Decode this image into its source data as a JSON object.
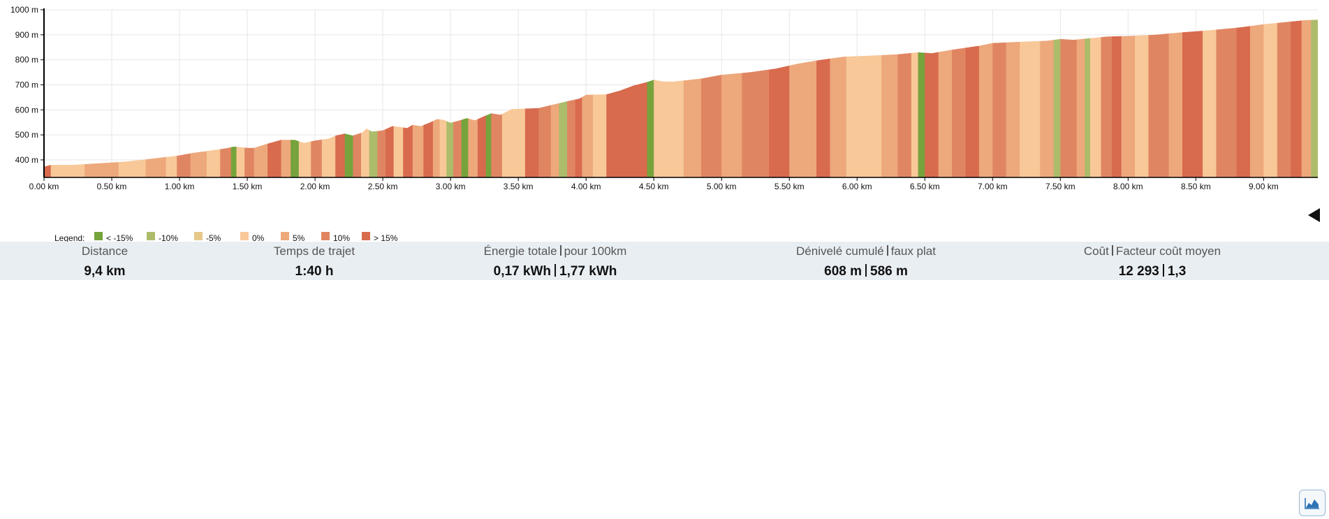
{
  "chart_data": {
    "type": "area",
    "xlabel": "",
    "ylabel": "",
    "xlim": [
      0,
      9.4
    ],
    "ylim": [
      330,
      1000
    ],
    "x_ticks": [
      0,
      0.5,
      1.0,
      1.5,
      2.0,
      2.5,
      3.0,
      3.5,
      4.0,
      4.5,
      5.0,
      5.5,
      6.0,
      6.5,
      7.0,
      7.5,
      8.0,
      8.5,
      9.0
    ],
    "x_tick_labels": [
      "0.00 km",
      "0.50 km",
      "1.00 km",
      "1.50 km",
      "2.00 km",
      "2.50 km",
      "3.00 km",
      "3.50 km",
      "4.00 km",
      "4.50 km",
      "5.00 km",
      "5.50 km",
      "6.00 km",
      "6.50 km",
      "7.00 km",
      "7.50 km",
      "8.00 km",
      "8.50 km",
      "9.00 km"
    ],
    "y_ticks": [
      400,
      500,
      600,
      700,
      800,
      900,
      1000
    ],
    "y_tick_labels": [
      "400 m",
      "500 m",
      "600 m",
      "700 m",
      "800 m",
      "900 m",
      "1000 m"
    ],
    "grid": true,
    "gradient_classes": [
      {
        "label": "< -15%",
        "color": "#76a33b"
      },
      {
        "label": "-10%",
        "color": "#acbc6a"
      },
      {
        "label": "-5%",
        "color": "#e6c98a"
      },
      {
        "label": "0%",
        "color": "#f8c898"
      },
      {
        "label": "5%",
        "color": "#eda87c"
      },
      {
        "label": "10%",
        "color": "#e08562"
      },
      {
        "label": "> 15%",
        "color": "#d86a4e"
      }
    ],
    "elevation_profile": [
      [
        0.0,
        373
      ],
      [
        0.05,
        380
      ],
      [
        0.2,
        380
      ],
      [
        0.4,
        386
      ],
      [
        0.6,
        393
      ],
      [
        0.8,
        405
      ],
      [
        1.0,
        418
      ],
      [
        1.1,
        428
      ],
      [
        1.2,
        435
      ],
      [
        1.35,
        447
      ],
      [
        1.4,
        453
      ],
      [
        1.5,
        448
      ],
      [
        1.55,
        448
      ],
      [
        1.65,
        465
      ],
      [
        1.75,
        480
      ],
      [
        1.85,
        480
      ],
      [
        1.92,
        468
      ],
      [
        2.0,
        477
      ],
      [
        2.1,
        485
      ],
      [
        2.15,
        497
      ],
      [
        2.22,
        505
      ],
      [
        2.28,
        497
      ],
      [
        2.35,
        510
      ],
      [
        2.38,
        525
      ],
      [
        2.42,
        513
      ],
      [
        2.5,
        518
      ],
      [
        2.57,
        535
      ],
      [
        2.62,
        532
      ],
      [
        2.68,
        527
      ],
      [
        2.72,
        540
      ],
      [
        2.78,
        535
      ],
      [
        2.85,
        550
      ],
      [
        2.9,
        563
      ],
      [
        2.95,
        560
      ],
      [
        3.0,
        548
      ],
      [
        3.06,
        557
      ],
      [
        3.12,
        567
      ],
      [
        3.18,
        558
      ],
      [
        3.25,
        575
      ],
      [
        3.3,
        586
      ],
      [
        3.37,
        580
      ],
      [
        3.45,
        603
      ],
      [
        3.55,
        605
      ],
      [
        3.65,
        607
      ],
      [
        3.75,
        620
      ],
      [
        3.85,
        633
      ],
      [
        3.95,
        645
      ],
      [
        4.0,
        660
      ],
      [
        4.15,
        662
      ],
      [
        4.25,
        677
      ],
      [
        4.35,
        697
      ],
      [
        4.45,
        711
      ],
      [
        4.5,
        720
      ],
      [
        4.57,
        713
      ],
      [
        4.65,
        713
      ],
      [
        4.85,
        725
      ],
      [
        5.0,
        740
      ],
      [
        5.2,
        750
      ],
      [
        5.4,
        765
      ],
      [
        5.55,
        783
      ],
      [
        5.7,
        797
      ],
      [
        5.8,
        805
      ],
      [
        5.9,
        812
      ],
      [
        6.1,
        817
      ],
      [
        6.3,
        822
      ],
      [
        6.45,
        830
      ],
      [
        6.55,
        826
      ],
      [
        6.7,
        840
      ],
      [
        6.9,
        856
      ],
      [
        7.0,
        867
      ],
      [
        7.2,
        872
      ],
      [
        7.4,
        876
      ],
      [
        7.5,
        883
      ],
      [
        7.6,
        880
      ],
      [
        7.75,
        888
      ],
      [
        7.85,
        893
      ],
      [
        8.0,
        895
      ],
      [
        8.2,
        900
      ],
      [
        8.4,
        910
      ],
      [
        8.6,
        918
      ],
      [
        8.8,
        928
      ],
      [
        9.0,
        942
      ],
      [
        9.15,
        950
      ],
      [
        9.3,
        958
      ],
      [
        9.4,
        960
      ]
    ],
    "gradient_segments": [
      [
        0.0,
        0.05,
        6
      ],
      [
        0.05,
        0.3,
        3
      ],
      [
        0.3,
        0.55,
        4
      ],
      [
        0.55,
        0.75,
        3
      ],
      [
        0.75,
        0.9,
        4
      ],
      [
        0.9,
        0.98,
        3
      ],
      [
        0.98,
        1.08,
        5
      ],
      [
        1.08,
        1.2,
        4
      ],
      [
        1.2,
        1.3,
        3
      ],
      [
        1.3,
        1.38,
        5
      ],
      [
        1.38,
        1.42,
        0
      ],
      [
        1.42,
        1.48,
        3
      ],
      [
        1.48,
        1.55,
        5
      ],
      [
        1.55,
        1.65,
        4
      ],
      [
        1.65,
        1.75,
        6
      ],
      [
        1.75,
        1.82,
        4
      ],
      [
        1.82,
        1.88,
        0
      ],
      [
        1.88,
        1.97,
        3
      ],
      [
        1.97,
        2.05,
        5
      ],
      [
        2.05,
        2.15,
        3
      ],
      [
        2.15,
        2.22,
        6
      ],
      [
        2.22,
        2.28,
        0
      ],
      [
        2.28,
        2.34,
        5
      ],
      [
        2.34,
        2.4,
        3
      ],
      [
        2.4,
        2.46,
        1
      ],
      [
        2.46,
        2.52,
        5
      ],
      [
        2.52,
        2.58,
        6
      ],
      [
        2.58,
        2.65,
        3
      ],
      [
        2.65,
        2.72,
        6
      ],
      [
        2.72,
        2.8,
        4
      ],
      [
        2.8,
        2.87,
        6
      ],
      [
        2.87,
        2.92,
        4
      ],
      [
        2.92,
        2.97,
        3
      ],
      [
        2.97,
        3.02,
        1
      ],
      [
        3.02,
        3.08,
        5
      ],
      [
        3.08,
        3.13,
        0
      ],
      [
        3.13,
        3.2,
        4
      ],
      [
        3.2,
        3.26,
        6
      ],
      [
        3.26,
        3.3,
        0
      ],
      [
        3.3,
        3.38,
        5
      ],
      [
        3.38,
        3.55,
        3
      ],
      [
        3.55,
        3.65,
        6
      ],
      [
        3.65,
        3.74,
        5
      ],
      [
        3.74,
        3.8,
        4
      ],
      [
        3.8,
        3.86,
        1
      ],
      [
        3.86,
        3.92,
        5
      ],
      [
        3.92,
        3.97,
        6
      ],
      [
        3.97,
        4.05,
        4
      ],
      [
        4.05,
        4.15,
        3
      ],
      [
        4.15,
        4.3,
        6
      ],
      [
        4.3,
        4.45,
        6
      ],
      [
        4.45,
        4.5,
        0
      ],
      [
        4.5,
        4.58,
        3
      ],
      [
        4.58,
        4.72,
        3
      ],
      [
        4.72,
        4.85,
        4
      ],
      [
        4.85,
        5.0,
        5
      ],
      [
        5.0,
        5.15,
        4
      ],
      [
        5.15,
        5.35,
        5
      ],
      [
        5.35,
        5.5,
        6
      ],
      [
        5.5,
        5.7,
        4
      ],
      [
        5.7,
        5.8,
        6
      ],
      [
        5.8,
        5.92,
        4
      ],
      [
        5.92,
        6.05,
        3
      ],
      [
        6.05,
        6.18,
        3
      ],
      [
        6.18,
        6.3,
        4
      ],
      [
        6.3,
        6.4,
        5
      ],
      [
        6.4,
        6.45,
        3
      ],
      [
        6.45,
        6.5,
        0
      ],
      [
        6.5,
        6.6,
        6
      ],
      [
        6.6,
        6.7,
        4
      ],
      [
        6.7,
        6.8,
        5
      ],
      [
        6.8,
        6.9,
        6
      ],
      [
        6.9,
        7.0,
        4
      ],
      [
        7.0,
        7.1,
        5
      ],
      [
        7.1,
        7.2,
        4
      ],
      [
        7.2,
        7.35,
        3
      ],
      [
        7.35,
        7.45,
        4
      ],
      [
        7.45,
        7.5,
        1
      ],
      [
        7.5,
        7.62,
        5
      ],
      [
        7.62,
        7.68,
        4
      ],
      [
        7.68,
        7.72,
        1
      ],
      [
        7.72,
        7.8,
        3
      ],
      [
        7.8,
        7.88,
        5
      ],
      [
        7.88,
        7.95,
        6
      ],
      [
        7.95,
        8.05,
        4
      ],
      [
        8.05,
        8.15,
        3
      ],
      [
        8.15,
        8.3,
        5
      ],
      [
        8.3,
        8.4,
        4
      ],
      [
        8.4,
        8.55,
        6
      ],
      [
        8.55,
        8.65,
        3
      ],
      [
        8.65,
        8.8,
        5
      ],
      [
        8.8,
        8.9,
        6
      ],
      [
        8.9,
        9.0,
        4
      ],
      [
        9.0,
        9.1,
        3
      ],
      [
        9.1,
        9.2,
        5
      ],
      [
        9.2,
        9.28,
        6
      ],
      [
        9.28,
        9.35,
        4
      ],
      [
        9.35,
        9.4,
        1
      ]
    ]
  },
  "legend_title": "Legend:",
  "stats": {
    "distance": {
      "title": "Distance",
      "value": "9,4 km"
    },
    "time": {
      "title": "Temps de trajet",
      "value": "1:40 h"
    },
    "energy": {
      "title_a": "Énergie totale",
      "title_b": "pour 100km",
      "value_a": "0,17 kWh",
      "value_b": "1,77 kWh"
    },
    "elevation": {
      "title_a": "Dénivelé cumulé",
      "title_b": "faux plat",
      "value_a": "608 m",
      "value_b": "586 m"
    },
    "cost": {
      "title_a": "Coût",
      "title_b": "Facteur coût moyen",
      "value_a": "12 293",
      "value_b": "1,3"
    }
  },
  "toolbar": {
    "chart_button_icon": "area-chart-icon"
  }
}
